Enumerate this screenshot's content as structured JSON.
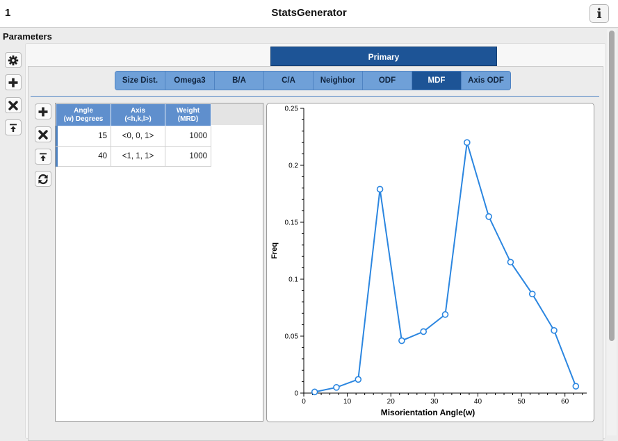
{
  "window": {
    "number": "1",
    "title": "StatsGenerator"
  },
  "parameters": {
    "label": "Parameters"
  },
  "sidebar_buttons": [
    "gear-icon",
    "plus-icon",
    "close-icon",
    "upload-icon"
  ],
  "primary_tab": {
    "label": "Primary"
  },
  "tabs": [
    {
      "label": "Size Dist.",
      "active": false
    },
    {
      "label": "Omega3",
      "active": false
    },
    {
      "label": "B/A",
      "active": false
    },
    {
      "label": "C/A",
      "active": false
    },
    {
      "label": "Neighbor",
      "active": false
    },
    {
      "label": "ODF",
      "active": false
    },
    {
      "label": "MDF",
      "active": true
    },
    {
      "label": "Axis ODF",
      "active": false
    }
  ],
  "table": {
    "headers": [
      {
        "line1": "Angle",
        "line2": "(w) Degrees"
      },
      {
        "line1": "Axis",
        "line2": "(<h,k,l>)"
      },
      {
        "line1": "Weight",
        "line2": "(MRD)"
      }
    ],
    "rows": [
      {
        "angle": "15",
        "axis": "<0, 0, 1>",
        "weight": "1000"
      },
      {
        "angle": "40",
        "axis": "<1, 1, 1>",
        "weight": "1000"
      }
    ],
    "buttons": [
      "plus-icon",
      "close-icon",
      "upload-icon",
      "refresh-icon"
    ]
  },
  "colors": {
    "accent": "#1d5496",
    "tab": "#6fa0d8",
    "series": "#2b86e0"
  },
  "chart_data": {
    "type": "line",
    "title": "",
    "xlabel": "Misorientation Angle(w)",
    "ylabel": "Freq",
    "xlim": [
      0,
      65
    ],
    "ylim": [
      0,
      0.25
    ],
    "xticks": [
      0,
      10,
      20,
      30,
      40,
      50,
      60
    ],
    "yticks": [
      0,
      0.05,
      0.1,
      0.15,
      0.2,
      0.25
    ],
    "series": [
      {
        "x": [
          2.5,
          7.5,
          12.5,
          17.5,
          22.5,
          27.5,
          32.5,
          37.5,
          42.5,
          47.5,
          52.5,
          57.5,
          62.5
        ],
        "y": [
          0.001,
          0.005,
          0.012,
          0.179,
          0.046,
          0.054,
          0.069,
          0.22,
          0.155,
          0.115,
          0.087,
          0.055,
          0.006
        ]
      }
    ],
    "grid": false,
    "markers": "circle"
  }
}
